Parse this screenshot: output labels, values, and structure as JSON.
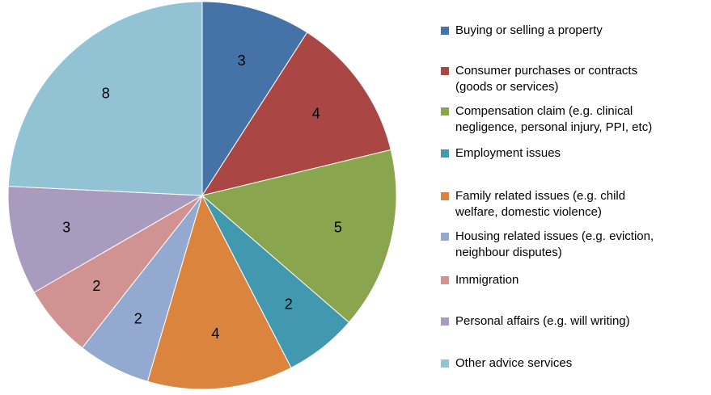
{
  "chart_data": {
    "type": "pie",
    "categories": [
      "Buying or selling a property",
      "Consumer purchases or contracts (goods or services)",
      "Compensation claim (e.g. clinical negligence, personal injury, PPI, etc)",
      "Employment issues",
      "Family related issues (e.g. child welfare, domestic violence)",
      "Housing related issues (e.g. eviction, neighbour disputes)",
      "Immigration",
      "Personal affairs (e.g. will writing)",
      "Other advice services"
    ],
    "values": [
      3,
      4,
      5,
      2,
      4,
      2,
      2,
      3,
      8
    ],
    "colors": [
      "#4572a7",
      "#aa4643",
      "#89a54e",
      "#4198af",
      "#db843d",
      "#93a9cf",
      "#d19392",
      "#a99bbd",
      "#92c3d4"
    ],
    "legend": "right"
  }
}
